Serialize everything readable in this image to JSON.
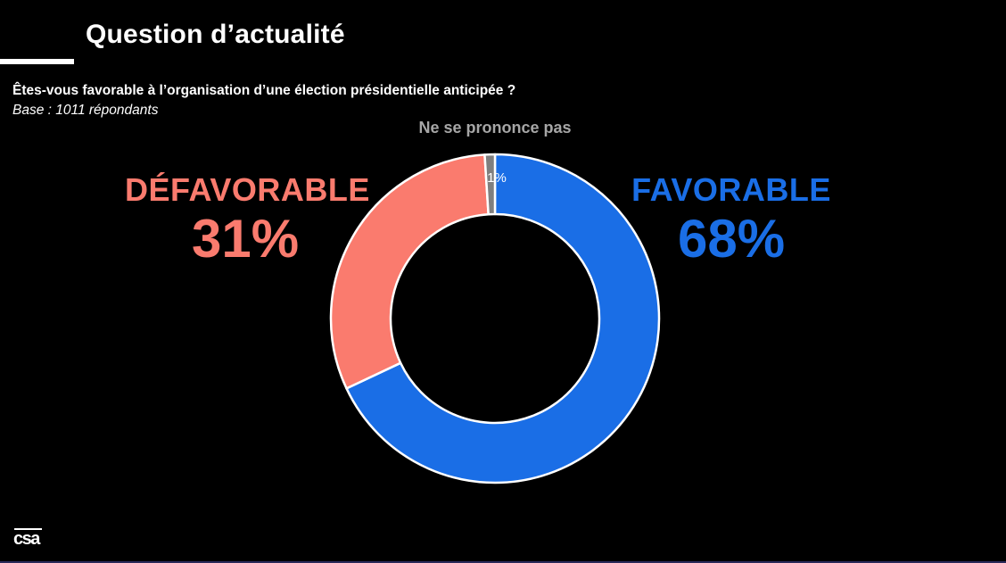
{
  "header": {
    "title": "Question d’actualité"
  },
  "question": {
    "text": "Êtes-vous favorable à l’organisation d’une élection présidentielle anticipée ?",
    "base": "Base : 1011 répondants"
  },
  "labels": {
    "no_opinion": "Ne se prononce pas",
    "no_opinion_pct": "1%",
    "unfavorable": "DÉFAVORABLE",
    "unfavorable_pct": "31%",
    "favorable": "FAVORABLE",
    "favorable_pct": "68%"
  },
  "colors": {
    "favorable": "#1a6ee6",
    "unfavorable": "#fa7b6e",
    "no_opinion": "#7f7f7f",
    "no_opinion_label": "#a6a6a6",
    "background": "#000000"
  },
  "logo": {
    "text": "csa"
  },
  "chart_data": {
    "type": "pie",
    "subtype": "donut",
    "title": "Êtes-vous favorable à l’organisation d’une élection présidentielle anticipée ?",
    "subtitle": "Base : 1011 répondants",
    "categories": [
      "Favorable",
      "Défavorable",
      "Ne se prononce pas"
    ],
    "values": [
      68,
      31,
      1
    ],
    "unit": "%",
    "colors": [
      "#1a6ee6",
      "#fa7b6e",
      "#7f7f7f"
    ],
    "start_angle": "12 o'clock, clockwise",
    "legend": "direct labels beside chart"
  }
}
